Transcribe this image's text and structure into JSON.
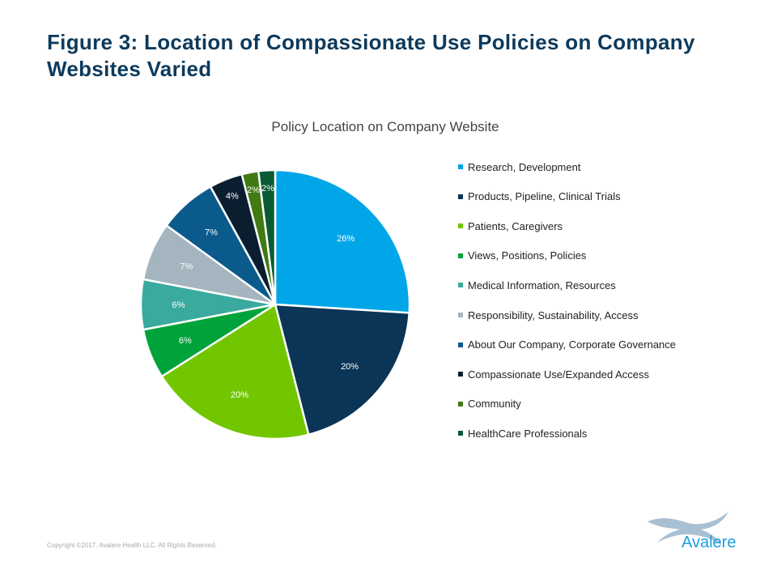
{
  "title": "Figure 3: Location of Compassionate Use Policies on Company Websites Varied",
  "chart_data": {
    "type": "pie",
    "title": "Policy Location on Company Website",
    "start": "top, clockwise",
    "legend_position": "right",
    "slices": [
      {
        "name": "Research, Development",
        "value": 26,
        "label": "26%",
        "color": "#00a6e8"
      },
      {
        "name": "Products, Pipeline, Clinical Trials",
        "value": 20,
        "label": "20%",
        "color": "#0b3556"
      },
      {
        "name": "Patients, Caregivers",
        "value": 20,
        "label": "20%",
        "color": "#72c600"
      },
      {
        "name": "Views, Positions, Policies",
        "value": 6,
        "label": "6%",
        "color": "#00a33a"
      },
      {
        "name": "Medical Information, Resources",
        "value": 6,
        "label": "6%",
        "color": "#3aaa9e"
      },
      {
        "name": "Responsibility, Sustainability, Access",
        "value": 7,
        "label": "7%",
        "color": "#a4b5bf"
      },
      {
        "name": "About Our Company, Corporate Governance",
        "value": 7,
        "label": "7%",
        "color": "#0a5b8c"
      },
      {
        "name": "Compassionate Use/Expanded Access",
        "value": 4,
        "label": "4%",
        "color": "#0b1e30"
      },
      {
        "name": "Community",
        "value": 2,
        "label": "2%",
        "color": "#3f7a12"
      },
      {
        "name": "HealthCare Professionals",
        "value": 2,
        "label": "2%",
        "color": "#0a5a34"
      }
    ]
  },
  "footer": {
    "copyright": "Copyright ©2017. Avalere Health LLC. All Rights Reserved.",
    "logo_text": "Avalere"
  }
}
